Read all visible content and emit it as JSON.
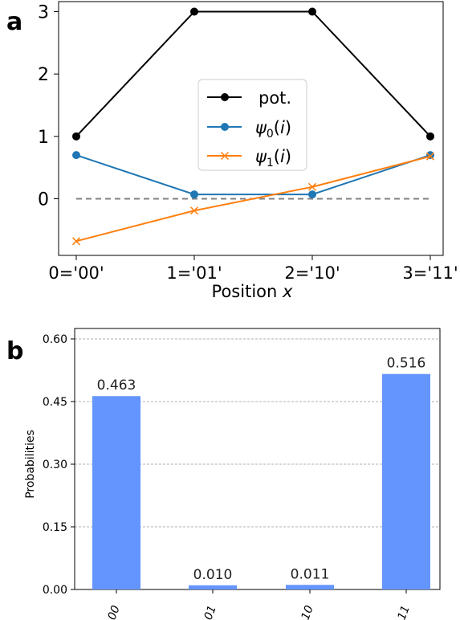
{
  "panel_a": {
    "label": "a"
  },
  "panel_b": {
    "label": "b"
  },
  "colors": {
    "black": "#000000",
    "blue": "#1f77b4",
    "orange": "#ff7f0e",
    "bar": "#6495ff",
    "dashed": "#808080"
  },
  "chart_data": [
    {
      "panel": "a",
      "type": "line",
      "xlabel": "Position x",
      "ylabel": "",
      "x": [
        0,
        1,
        2,
        3
      ],
      "x_tick_labels": [
        "0='00'",
        "1='01'",
        "2='10'",
        "3='11'"
      ],
      "y_ticks": [
        0,
        1,
        2,
        3
      ],
      "ylim": [
        -0.75,
        3.1
      ],
      "legend_position": "center",
      "reference_line": {
        "y": 0,
        "style": "dashed"
      },
      "series": [
        {
          "name": "pot.",
          "values": [
            1,
            3,
            3,
            1
          ],
          "marker": "circle",
          "color": "#000000"
        },
        {
          "name": "ψ0(i)",
          "values": [
            0.7,
            0.07,
            0.07,
            0.7
          ],
          "marker": "circle",
          "color": "#1f77b4"
        },
        {
          "name": "ψ1(i)",
          "values": [
            -0.68,
            -0.19,
            0.19,
            0.68
          ],
          "marker": "x",
          "color": "#ff7f0e"
        }
      ]
    },
    {
      "panel": "b",
      "type": "bar",
      "ylabel": "Probabilities",
      "categories": [
        "00",
        "01",
        "10",
        "11"
      ],
      "values": [
        0.463,
        0.01,
        0.011,
        0.516
      ],
      "data_labels": [
        "0.463",
        "0.010",
        "0.011",
        "0.516"
      ],
      "y_ticks": [
        "0.00",
        "0.15",
        "0.30",
        "0.45",
        "0.60"
      ],
      "ylim": [
        0,
        0.62
      ],
      "grid": "horizontal dashed"
    }
  ]
}
